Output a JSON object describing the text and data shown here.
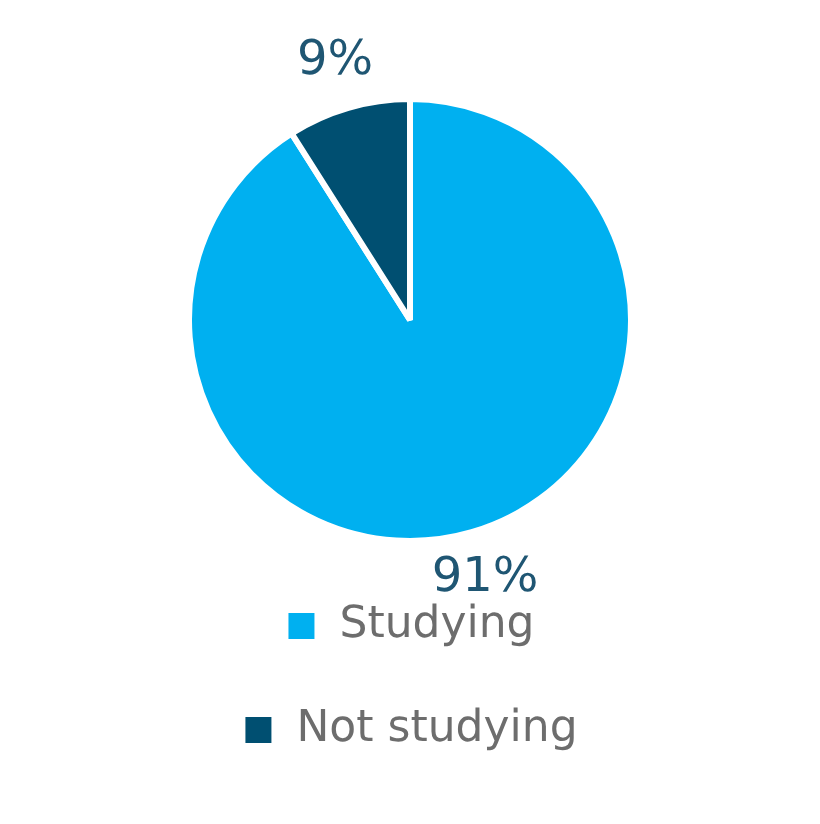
{
  "chart_data": {
    "type": "pie",
    "categories": [
      "Studying",
      "Not studying"
    ],
    "values": [
      91,
      9
    ],
    "colors": [
      "#00b0f0",
      "#004f71"
    ],
    "value_labels": [
      "91%",
      "9%"
    ],
    "legend": "bottom"
  }
}
